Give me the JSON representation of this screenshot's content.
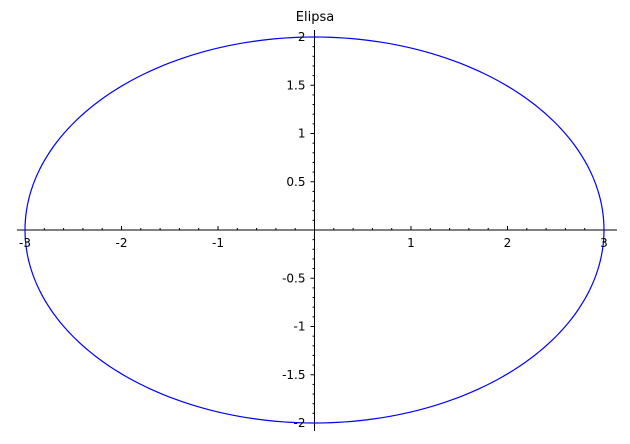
{
  "chart_data": {
    "type": "line",
    "title": "Elipsa",
    "xlabel": "",
    "ylabel": "",
    "xlim": [
      -3,
      3
    ],
    "ylim": [
      -2,
      2
    ],
    "grid": false,
    "axes_style": "crossing-at-origin",
    "series": [
      {
        "color": "#0000ff",
        "equation": "x^2/9 + y^2/4 = 1",
        "x": [
          3,
          2.598,
          1.5,
          0,
          -1.5,
          -2.598,
          -3,
          -2.598,
          -1.5,
          0,
          1.5,
          2.598,
          3
        ],
        "y": [
          0,
          1,
          1.732,
          2,
          1.732,
          1,
          0,
          -1,
          -1.732,
          -2,
          -1.732,
          -1,
          0
        ]
      }
    ],
    "x_ticks": [
      {
        "value": -3,
        "label": "-3"
      },
      {
        "value": -2,
        "label": "-2"
      },
      {
        "value": -1,
        "label": "-1"
      },
      {
        "value": 1,
        "label": "1"
      },
      {
        "value": 2,
        "label": "2"
      },
      {
        "value": 3,
        "label": "3"
      }
    ],
    "y_ticks": [
      {
        "value": 2,
        "label": "2"
      },
      {
        "value": 1.5,
        "label": "1.5"
      },
      {
        "value": 1,
        "label": "1"
      },
      {
        "value": 0.5,
        "label": "0.5"
      },
      {
        "value": -0.5,
        "label": "-0.5"
      },
      {
        "value": -1,
        "label": "-1"
      },
      {
        "value": -1.5,
        "label": "-1.5"
      },
      {
        "value": -2,
        "label": "-2"
      }
    ],
    "axis_color": "#000000"
  }
}
